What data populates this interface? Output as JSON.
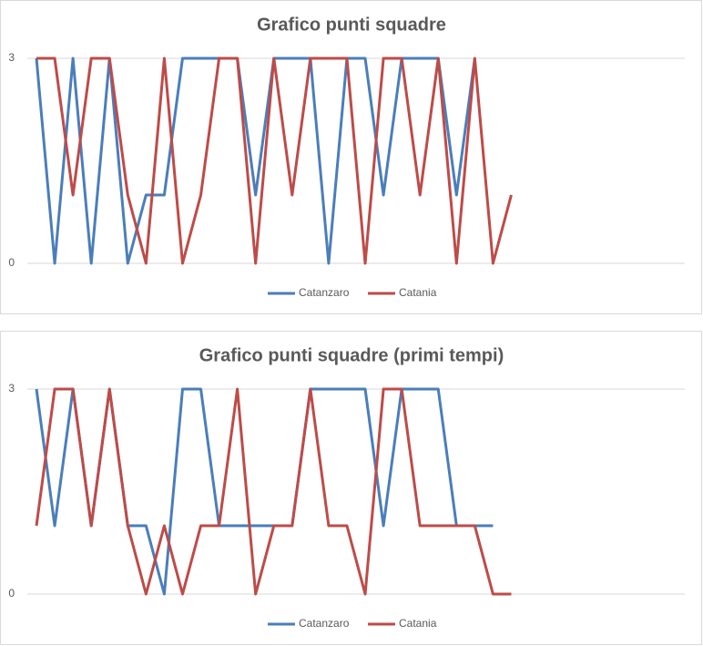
{
  "chart_data": [
    {
      "type": "line",
      "title": "Grafico punti squadre",
      "categories": [
        null,
        null,
        null,
        null,
        null,
        null,
        null,
        null,
        null,
        null,
        null,
        null,
        null,
        null,
        null,
        null,
        null,
        null,
        null,
        null,
        null,
        null,
        null,
        null,
        null,
        null,
        null,
        null,
        null,
        null,
        null,
        null,
        null,
        null,
        null,
        null
      ],
      "series": [
        {
          "name": "Catanzaro",
          "color": "#4a7ebb",
          "values": [
            3,
            0,
            3,
            0,
            3,
            0,
            1,
            1,
            3,
            3,
            3,
            3,
            1,
            3,
            3,
            3,
            0,
            3,
            3,
            1,
            3,
            3,
            3,
            1,
            3,
            null,
            null,
            null,
            null,
            null,
            null,
            null,
            null,
            null,
            null,
            null
          ]
        },
        {
          "name": "Catania",
          "color": "#be4b48",
          "values": [
            3,
            3,
            1,
            3,
            3,
            1,
            0,
            3,
            0,
            1,
            3,
            3,
            0,
            3,
            1,
            3,
            3,
            3,
            0,
            3,
            3,
            1,
            3,
            0,
            3,
            0,
            1,
            null,
            null,
            null,
            null,
            null,
            null,
            null,
            null,
            null
          ]
        }
      ],
      "ylim": [
        0,
        3
      ],
      "yticks": [
        0,
        3
      ],
      "grid": true,
      "legend": "bottom"
    },
    {
      "type": "line",
      "title": "Grafico punti squadre (primi tempi)",
      "categories": [
        null,
        null,
        null,
        null,
        null,
        null,
        null,
        null,
        null,
        null,
        null,
        null,
        null,
        null,
        null,
        null,
        null,
        null,
        null,
        null,
        null,
        null,
        null,
        null,
        null,
        null,
        null,
        null,
        null,
        null,
        null,
        null,
        null,
        null,
        null,
        null
      ],
      "series": [
        {
          "name": "Catanzaro",
          "color": "#4a7ebb",
          "values": [
            3,
            1,
            3,
            1,
            3,
            1,
            1,
            0,
            3,
            3,
            1,
            1,
            1,
            1,
            1,
            3,
            3,
            3,
            3,
            1,
            3,
            3,
            3,
            1,
            1,
            1,
            null,
            null,
            null,
            null,
            null,
            null,
            null,
            null,
            null,
            null
          ]
        },
        {
          "name": "Catania",
          "color": "#be4b48",
          "values": [
            1,
            3,
            3,
            1,
            3,
            1,
            0,
            1,
            0,
            1,
            1,
            3,
            0,
            1,
            1,
            3,
            1,
            1,
            0,
            3,
            3,
            1,
            1,
            1,
            1,
            0,
            0,
            null,
            null,
            null,
            null,
            null,
            null,
            null,
            null,
            null
          ]
        }
      ],
      "ylim": [
        0,
        3
      ],
      "yticks": [
        0,
        3
      ],
      "grid": true,
      "legend": "bottom"
    }
  ]
}
